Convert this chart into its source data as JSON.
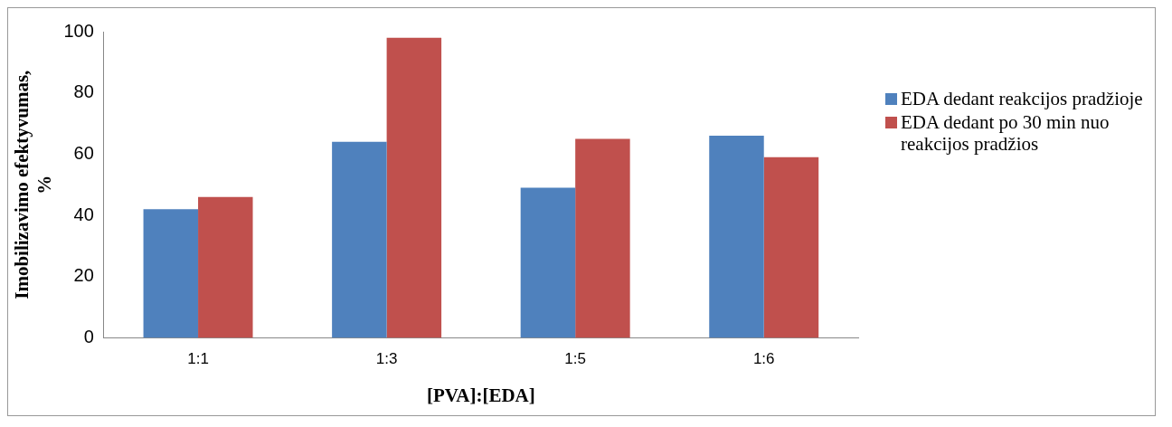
{
  "chart_data": {
    "type": "bar",
    "xlabel": "[PVA]:[EDA]",
    "ylabel": "Imobilizavimo efektyvumas, %",
    "categories": [
      "1:1",
      "1:3",
      "1:5",
      "1:6"
    ],
    "series": [
      {
        "name": "EDA dedant reakcijos pradžioje",
        "color": "#4f81bd",
        "values": [
          42,
          64,
          49,
          66
        ]
      },
      {
        "name": "EDA dedant po 30 min nuo reakcijos pradžios",
        "color": "#c0504d",
        "values": [
          46,
          98,
          65,
          59
        ]
      }
    ],
    "ylim": [
      0,
      100
    ],
    "yticks": [
      0,
      20,
      40,
      60,
      80,
      100
    ],
    "grid": false,
    "legend": "right"
  }
}
